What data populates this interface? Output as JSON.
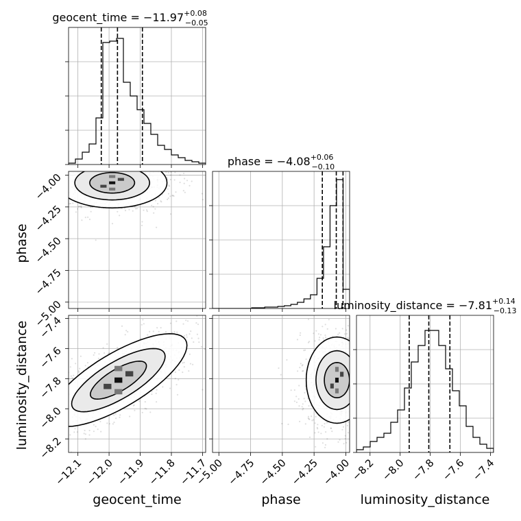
{
  "chart_data": {
    "type": "corner",
    "parameters": [
      "geocent_time",
      "phase",
      "luminosity_distance"
    ],
    "ranges": {
      "geocent_time": [
        -12.13,
        -11.69
      ],
      "phase": [
        -5.05,
        -3.97
      ],
      "luminosity_distance": [
        -8.29,
        -7.38
      ]
    },
    "ticks": {
      "geocent_time": [
        -12.1,
        -12.0,
        -11.9,
        -11.8,
        -11.7
      ],
      "phase": [
        -5.0,
        -4.75,
        -4.5,
        -4.25,
        -4.0
      ],
      "luminosity_distance": [
        -8.2,
        -8.0,
        -7.8,
        -7.6,
        -7.4
      ]
    },
    "tick_labels": {
      "geocent_time": [
        "−12.1",
        "−12.0",
        "−11.9",
        "−11.8",
        "−11.7"
      ],
      "phase": [
        "−5.00",
        "−4.75",
        "−4.50",
        "−4.25",
        "−4.00"
      ],
      "luminosity_distance": [
        "−8.2",
        "−8.0",
        "−7.8",
        "−7.6",
        "−7.4"
      ]
    },
    "titles": {
      "geocent_time": {
        "name": "geocent_time",
        "median": "−11.97",
        "plus": "+0.08",
        "minus": "−0.05"
      },
      "phase": {
        "name": "phase",
        "median": "−4.08",
        "plus": "+0.06",
        "minus": "−0.10"
      },
      "luminosity_distance": {
        "name": "luminosity_distance",
        "median": "−7.81",
        "plus": "+0.14",
        "minus": "−0.13"
      }
    },
    "quantiles": {
      "geocent_time": [
        -12.025,
        -11.973,
        -11.893
      ],
      "phase": [
        -4.185,
        -4.075,
        -4.022
      ],
      "luminosity_distance": [
        -7.94,
        -7.81,
        -7.67
      ]
    },
    "histograms": {
      "geocent_time": {
        "edges_start": -12.13,
        "edges_end": -11.69,
        "counts": [
          0.01,
          0.04,
          0.09,
          0.15,
          0.34,
          0.89,
          0.9,
          0.92,
          0.6,
          0.5,
          0.4,
          0.3,
          0.22,
          0.14,
          0.11,
          0.07,
          0.05,
          0.03,
          0.02,
          0.01
        ]
      },
      "phase": {
        "edges_start": -5.05,
        "edges_end": -3.97,
        "counts": [
          0,
          0,
          0,
          0,
          0,
          0,
          0.005,
          0.005,
          0.01,
          0.01,
          0.015,
          0.02,
          0.03,
          0.045,
          0.07,
          0.1,
          0.22,
          0.45,
          0.75,
          0.94,
          0.14
        ]
      },
      "luminosity_distance": {
        "edges_start": -8.29,
        "edges_end": -7.38,
        "counts": [
          0.02,
          0.04,
          0.08,
          0.11,
          0.14,
          0.22,
          0.31,
          0.47,
          0.66,
          0.78,
          0.89,
          0.89,
          0.78,
          0.61,
          0.45,
          0.34,
          0.19,
          0.11,
          0.06,
          0.03
        ]
      }
    },
    "pairs": [
      {
        "x": "geocent_time",
        "y": "phase",
        "center": [
          -11.99,
          -4.06
        ],
        "spread": [
          0.08,
          0.09
        ],
        "corr": 0
      },
      {
        "x": "geocent_time",
        "y": "luminosity_distance",
        "center": [
          -11.97,
          -7.81
        ],
        "spread": [
          0.1,
          0.14
        ],
        "corr": 0.75
      },
      {
        "x": "phase",
        "y": "luminosity_distance",
        "center": [
          -4.07,
          -7.81
        ],
        "spread": [
          0.11,
          0.13
        ],
        "corr": 0
      }
    ],
    "grid": true
  }
}
